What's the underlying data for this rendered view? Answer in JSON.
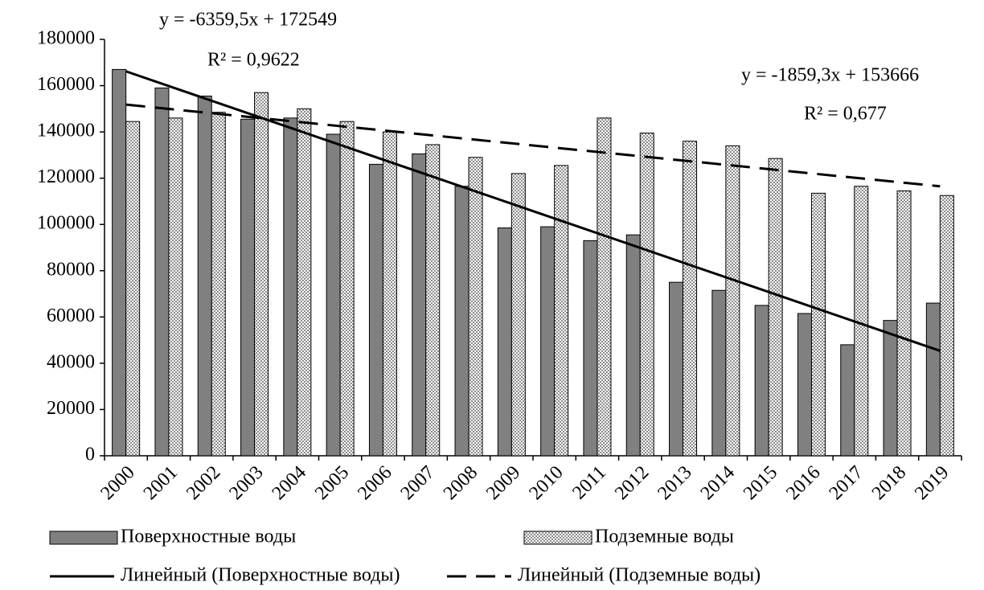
{
  "chart_data": {
    "type": "bar",
    "categories": [
      "2000",
      "2001",
      "2002",
      "2003",
      "2004",
      "2005",
      "2006",
      "2007",
      "2008",
      "2009",
      "2010",
      "2011",
      "2012",
      "2013",
      "2014",
      "2015",
      "2016",
      "2017",
      "2018",
      "2019"
    ],
    "series": [
      {
        "name": "Поверхностные воды",
        "color": "#808080",
        "pattern": "solid",
        "values": [
          167000,
          159000,
          155500,
          145500,
          146000,
          139000,
          126000,
          130500,
          116500,
          98500,
          99000,
          93000,
          95500,
          75000,
          71500,
          65000,
          61500,
          48000,
          58500,
          66000
        ]
      },
      {
        "name": "Подземные воды",
        "color": "#8c8c8c",
        "pattern": "dots",
        "values": [
          144500,
          146000,
          148500,
          157000,
          150000,
          144500,
          140000,
          134500,
          129000,
          122000,
          125500,
          146000,
          139500,
          136000,
          134000,
          128500,
          113500,
          116500,
          114500,
          112500
        ]
      }
    ],
    "trendlines": [
      {
        "name": "Линейный (Поверхностные воды)",
        "series": 0,
        "dash": "solid",
        "slope": -6359.5,
        "intercept": 172549,
        "equation": "y = -6359,5x + 172549",
        "r2": {
          "value": 0.9622,
          "label": "R² = 0,9622"
        }
      },
      {
        "name": "Линейный (Подземные воды)",
        "series": 1,
        "dash": "dashed",
        "slope": -1859.3,
        "intercept": 153666,
        "equation": "y = -1859,3x + 153666",
        "r2": {
          "value": 0.677,
          "label": "R² = 0,677"
        }
      }
    ],
    "ylim": [
      0,
      180000
    ],
    "yticks": [
      0,
      20000,
      40000,
      60000,
      80000,
      100000,
      120000,
      140000,
      160000,
      180000
    ],
    "grid": false,
    "legend": "bottom"
  }
}
